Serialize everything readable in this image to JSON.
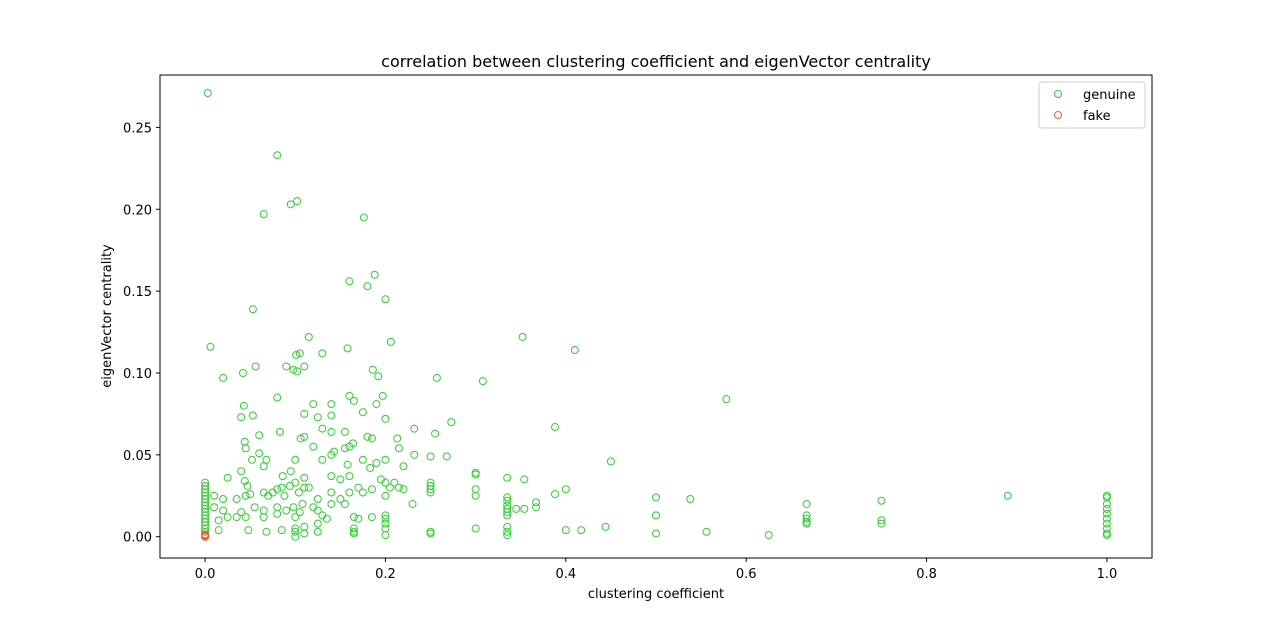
{
  "chart_data": {
    "type": "scatter",
    "title": "correlation between clustering coefficient and eigenVector centrality",
    "xlabel": "clustering coefficient",
    "ylabel": "eigenVector centrality",
    "xlim": [
      -0.05,
      1.05
    ],
    "ylim": [
      -0.013,
      0.282
    ],
    "xticks": [
      0.0,
      0.2,
      0.4,
      0.6,
      0.8,
      1.0
    ],
    "xtick_labels": [
      "0.0",
      "0.2",
      "0.4",
      "0.6",
      "0.8",
      "1.0"
    ],
    "yticks": [
      0.0,
      0.05,
      0.1,
      0.15,
      0.2,
      0.25
    ],
    "ytick_labels": [
      "0.00",
      "0.05",
      "0.10",
      "0.15",
      "0.20",
      "0.25"
    ],
    "grid": false,
    "legend_position": "top-right",
    "marker": "hollow-circle",
    "series": [
      {
        "name": "genuine",
        "color": "#33cc33",
        "points": [
          [
            0.003,
            0.271
          ],
          [
            0.08,
            0.233
          ],
          [
            0.065,
            0.197
          ],
          [
            0.095,
            0.203
          ],
          [
            0.102,
            0.205
          ],
          [
            0.176,
            0.195
          ],
          [
            0.053,
            0.139
          ],
          [
            0.16,
            0.156
          ],
          [
            0.18,
            0.153
          ],
          [
            0.188,
            0.16
          ],
          [
            0.2,
            0.145
          ],
          [
            0.006,
            0.116
          ],
          [
            0.115,
            0.122
          ],
          [
            0.02,
            0.097
          ],
          [
            0.042,
            0.1
          ],
          [
            0.056,
            0.104
          ],
          [
            0.09,
            0.104
          ],
          [
            0.098,
            0.102
          ],
          [
            0.101,
            0.111
          ],
          [
            0.105,
            0.112
          ],
          [
            0.11,
            0.104
          ],
          [
            0.102,
            0.101
          ],
          [
            0.13,
            0.112
          ],
          [
            0.158,
            0.115
          ],
          [
            0.186,
            0.102
          ],
          [
            0.192,
            0.098
          ],
          [
            0.206,
            0.119
          ],
          [
            0.352,
            0.122
          ],
          [
            0.41,
            0.114
          ],
          [
            0.257,
            0.097
          ],
          [
            0.308,
            0.095
          ],
          [
            0.578,
            0.084
          ],
          [
            0.04,
            0.073
          ],
          [
            0.043,
            0.08
          ],
          [
            0.053,
            0.074
          ],
          [
            0.08,
            0.085
          ],
          [
            0.11,
            0.075
          ],
          [
            0.12,
            0.081
          ],
          [
            0.125,
            0.073
          ],
          [
            0.14,
            0.081
          ],
          [
            0.14,
            0.074
          ],
          [
            0.16,
            0.086
          ],
          [
            0.165,
            0.083
          ],
          [
            0.175,
            0.076
          ],
          [
            0.19,
            0.081
          ],
          [
            0.197,
            0.086
          ],
          [
            0.2,
            0.072
          ],
          [
            0.185,
            0.06
          ],
          [
            0.18,
            0.061
          ],
          [
            0.13,
            0.066
          ],
          [
            0.106,
            0.06
          ],
          [
            0.11,
            0.061
          ],
          [
            0.083,
            0.064
          ],
          [
            0.06,
            0.062
          ],
          [
            0.044,
            0.058
          ],
          [
            0.045,
            0.054
          ],
          [
            0.14,
            0.064
          ],
          [
            0.155,
            0.064
          ],
          [
            0.164,
            0.057
          ],
          [
            0.12,
            0.055
          ],
          [
            0.232,
            0.066
          ],
          [
            0.255,
            0.063
          ],
          [
            0.273,
            0.07
          ],
          [
            0.213,
            0.06
          ],
          [
            0.215,
            0.054
          ],
          [
            0.388,
            0.067
          ],
          [
            0.45,
            0.046
          ],
          [
            0.06,
            0.051
          ],
          [
            0.068,
            0.047
          ],
          [
            0.065,
            0.043
          ],
          [
            0.052,
            0.047
          ],
          [
            0.04,
            0.04
          ],
          [
            0.1,
            0.047
          ],
          [
            0.13,
            0.047
          ],
          [
            0.14,
            0.05
          ],
          [
            0.143,
            0.052
          ],
          [
            0.155,
            0.054
          ],
          [
            0.16,
            0.055
          ],
          [
            0.158,
            0.044
          ],
          [
            0.175,
            0.047
          ],
          [
            0.183,
            0.042
          ],
          [
            0.19,
            0.045
          ],
          [
            0.2,
            0.047
          ],
          [
            0.22,
            0.043
          ],
          [
            0.232,
            0.05
          ],
          [
            0.25,
            0.049
          ],
          [
            0.268,
            0.049
          ],
          [
            0.14,
            0.037
          ],
          [
            0.15,
            0.035
          ],
          [
            0.11,
            0.036
          ],
          [
            0.086,
            0.037
          ],
          [
            0.095,
            0.04
          ],
          [
            0.025,
            0.036
          ],
          [
            0.044,
            0.034
          ],
          [
            0.085,
            0.03
          ],
          [
            0.16,
            0.037
          ],
          [
            0.17,
            0.03
          ],
          [
            0.195,
            0.035
          ],
          [
            0.2,
            0.033
          ],
          [
            0.21,
            0.033
          ],
          [
            0.205,
            0.03
          ],
          [
            0.25,
            0.033
          ],
          [
            0.25,
            0.031
          ],
          [
            0.3,
            0.039
          ],
          [
            0.3,
            0.038
          ],
          [
            0.335,
            0.036
          ],
          [
            0.354,
            0.035
          ],
          [
            0.4,
            0.029
          ],
          [
            0.388,
            0.026
          ],
          [
            0.3,
            0.029
          ],
          [
            0.3,
            0.025
          ],
          [
            0.22,
            0.029
          ],
          [
            0.01,
            0.025
          ],
          [
            0.02,
            0.023
          ],
          [
            0.035,
            0.023
          ],
          [
            0.045,
            0.025
          ],
          [
            0.047,
            0.031
          ],
          [
            0.05,
            0.026
          ],
          [
            0.065,
            0.027
          ],
          [
            0.07,
            0.025
          ],
          [
            0.075,
            0.027
          ],
          [
            0.08,
            0.029
          ],
          [
            0.088,
            0.025
          ],
          [
            0.094,
            0.031
          ],
          [
            0.1,
            0.033
          ],
          [
            0.104,
            0.027
          ],
          [
            0.11,
            0.03
          ],
          [
            0.115,
            0.03
          ],
          [
            0.125,
            0.023
          ],
          [
            0.14,
            0.027
          ],
          [
            0.15,
            0.023
          ],
          [
            0.16,
            0.027
          ],
          [
            0.175,
            0.027
          ],
          [
            0.185,
            0.029
          ],
          [
            0.2,
            0.025
          ],
          [
            0.215,
            0.03
          ],
          [
            0.25,
            0.027
          ],
          [
            0.25,
            0.029
          ],
          [
            0.335,
            0.024
          ],
          [
            0.335,
            0.022
          ],
          [
            0.367,
            0.021
          ],
          [
            0.335,
            0.019
          ],
          [
            0.335,
            0.017
          ],
          [
            0.335,
            0.015
          ],
          [
            0.335,
            0.013
          ],
          [
            0.345,
            0.017
          ],
          [
            0.354,
            0.017
          ],
          [
            0.367,
            0.018
          ],
          [
            0.5,
            0.024
          ],
          [
            0.538,
            0.023
          ],
          [
            0.667,
            0.02
          ],
          [
            0.667,
            0.013
          ],
          [
            0.667,
            0.011
          ],
          [
            0.667,
            0.009
          ],
          [
            0.667,
            0.008
          ],
          [
            0.75,
            0.022
          ],
          [
            0.75,
            0.01
          ],
          [
            0.75,
            0.008
          ],
          [
            0.89,
            0.025
          ],
          [
            1.0,
            0.025
          ],
          [
            1.0,
            0.024
          ],
          [
            1.0,
            0.02
          ],
          [
            1.0,
            0.017
          ],
          [
            1.0,
            0.014
          ],
          [
            1.0,
            0.011
          ],
          [
            1.0,
            0.008
          ],
          [
            1.0,
            0.005
          ],
          [
            1.0,
            0.002
          ],
          [
            1.0,
            0.001
          ],
          [
            0.01,
            0.018
          ],
          [
            0.02,
            0.016
          ],
          [
            0.035,
            0.012
          ],
          [
            0.04,
            0.015
          ],
          [
            0.045,
            0.012
          ],
          [
            0.055,
            0.018
          ],
          [
            0.065,
            0.016
          ],
          [
            0.065,
            0.012
          ],
          [
            0.08,
            0.014
          ],
          [
            0.08,
            0.018
          ],
          [
            0.09,
            0.016
          ],
          [
            0.098,
            0.018
          ],
          [
            0.1,
            0.012
          ],
          [
            0.105,
            0.015
          ],
          [
            0.108,
            0.02
          ],
          [
            0.12,
            0.018
          ],
          [
            0.125,
            0.016
          ],
          [
            0.13,
            0.013
          ],
          [
            0.125,
            0.008
          ],
          [
            0.135,
            0.011
          ],
          [
            0.14,
            0.02
          ],
          [
            0.155,
            0.02
          ],
          [
            0.165,
            0.012
          ],
          [
            0.17,
            0.011
          ],
          [
            0.165,
            0.005
          ],
          [
            0.165,
            0.003
          ],
          [
            0.165,
            0.002
          ],
          [
            0.185,
            0.012
          ],
          [
            0.2,
            0.013
          ],
          [
            0.2,
            0.011
          ],
          [
            0.2,
            0.008
          ],
          [
            0.2,
            0.005
          ],
          [
            0.2,
            0.001
          ],
          [
            0.23,
            0.02
          ],
          [
            0.25,
            0.003
          ],
          [
            0.25,
            0.002
          ],
          [
            0.3,
            0.005
          ],
          [
            0.335,
            0.006
          ],
          [
            0.335,
            0.003
          ],
          [
            0.335,
            0.001
          ],
          [
            0.4,
            0.004
          ],
          [
            0.417,
            0.004
          ],
          [
            0.444,
            0.006
          ],
          [
            0.5,
            0.013
          ],
          [
            0.5,
            0.002
          ],
          [
            0.556,
            0.003
          ],
          [
            0.625,
            0.001
          ],
          [
            0.015,
            0.01
          ],
          [
            0.025,
            0.012
          ],
          [
            0.048,
            0.004
          ],
          [
            0.068,
            0.003
          ],
          [
            0.085,
            0.004
          ],
          [
            0.1,
            0.005
          ],
          [
            0.1,
            0.003
          ],
          [
            0.1,
            0.0
          ],
          [
            0.11,
            0.006
          ],
          [
            0.11,
            0.002
          ],
          [
            0.125,
            0.003
          ],
          [
            0.015,
            0.004
          ],
          [
            0.0,
            0.033
          ],
          [
            0.0,
            0.031
          ],
          [
            0.0,
            0.029
          ],
          [
            0.0,
            0.027
          ],
          [
            0.0,
            0.025
          ],
          [
            0.0,
            0.023
          ],
          [
            0.0,
            0.021
          ],
          [
            0.0,
            0.019
          ],
          [
            0.0,
            0.017
          ],
          [
            0.0,
            0.015
          ],
          [
            0.0,
            0.013
          ],
          [
            0.0,
            0.011
          ],
          [
            0.0,
            0.009
          ],
          [
            0.0,
            0.007
          ],
          [
            0.0,
            0.005
          ],
          [
            0.0,
            0.003
          ],
          [
            0.0,
            0.001
          ]
        ]
      },
      {
        "name": "fake",
        "color": "#e8613c",
        "points": [
          [
            0.0,
            0.0
          ],
          [
            0.0,
            0.0005
          ],
          [
            0.0,
            0.001
          ],
          [
            0.0,
            0.0015
          ],
          [
            0.0,
            0.0
          ]
        ]
      }
    ]
  }
}
